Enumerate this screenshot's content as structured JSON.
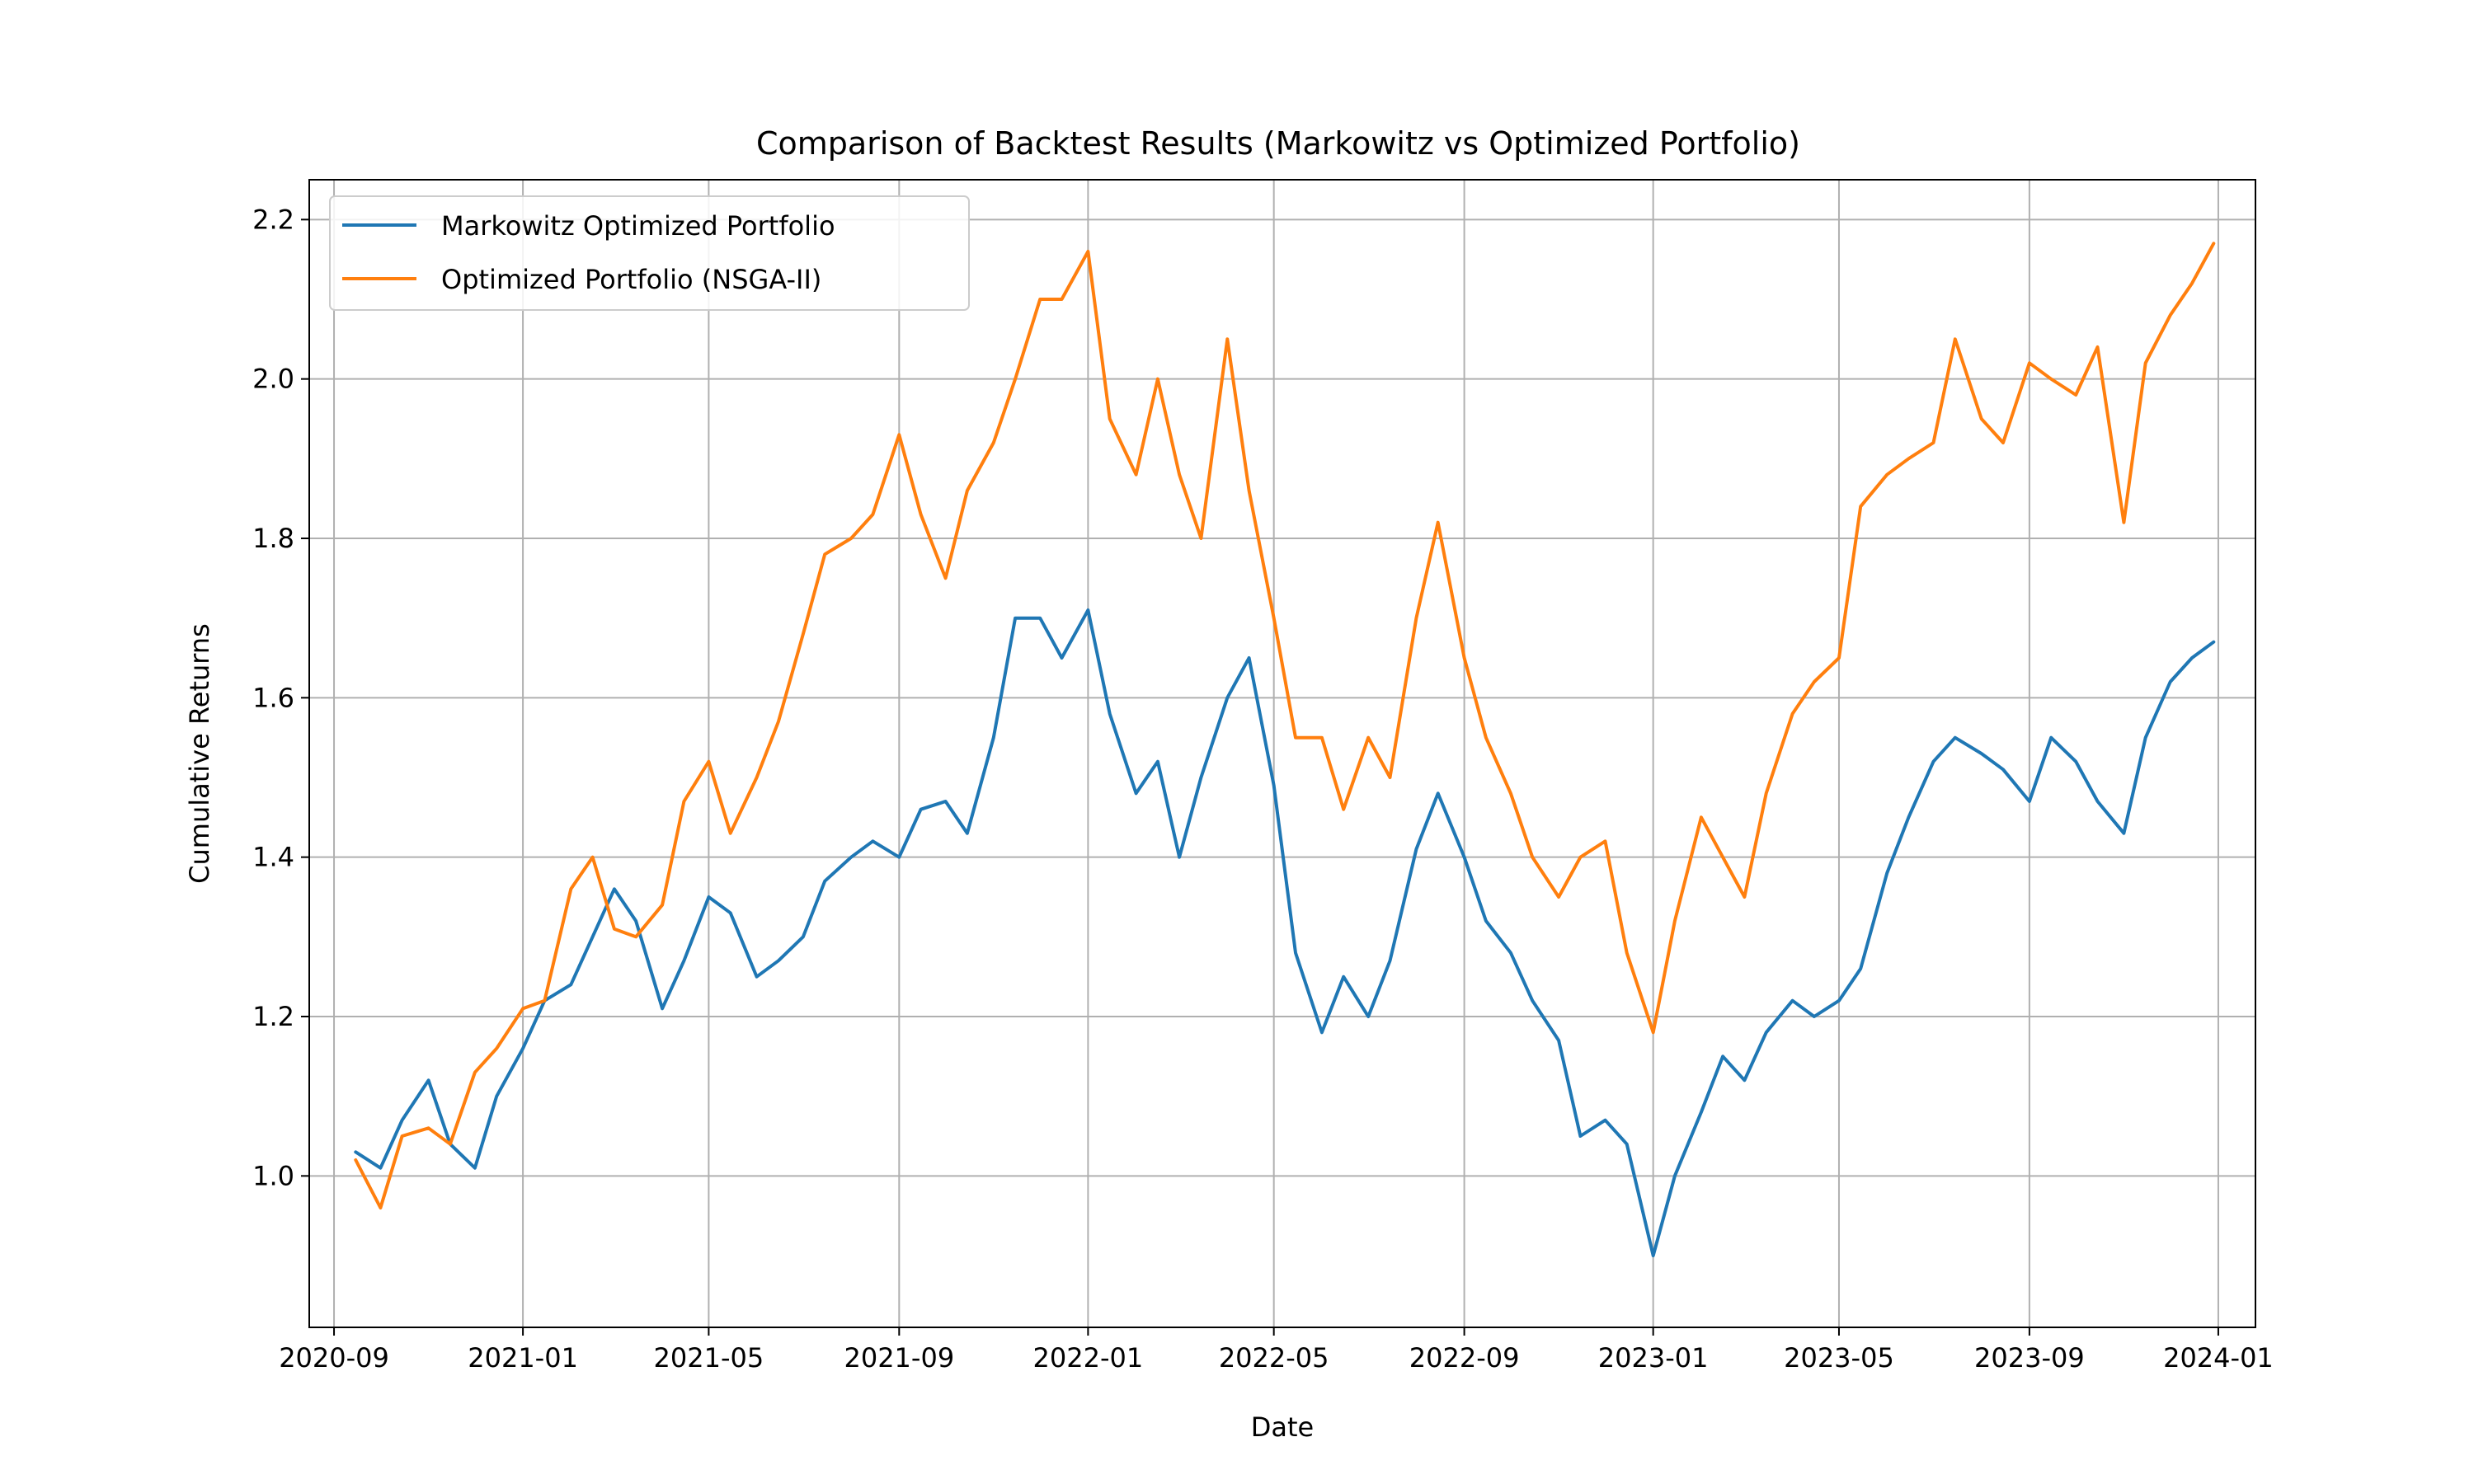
{
  "chart_data": {
    "type": "line",
    "title": "Comparison of Backtest Results (Markowitz vs Optimized Portfolio)",
    "xlabel": "Date",
    "ylabel": "Cumulative Returns",
    "x_ticks": [
      "2020-09",
      "2021-01",
      "2021-05",
      "2021-09",
      "2022-01",
      "2022-05",
      "2022-09",
      "2023-01",
      "2023-05",
      "2023-09",
      "2024-01"
    ],
    "y_ticks": [
      "1.0",
      "1.2",
      "1.4",
      "1.6",
      "1.8",
      "2.0",
      "2.2"
    ],
    "xlim": [
      "2020-08-16",
      "2024-01-25"
    ],
    "ylim": [
      0.81,
      2.25
    ],
    "grid": true,
    "legend_position": "upper-left",
    "x": [
      "2020-09-15",
      "2020-10-01",
      "2020-10-15",
      "2020-11-01",
      "2020-11-15",
      "2020-12-01",
      "2020-12-15",
      "2021-01-01",
      "2021-01-15",
      "2021-02-01",
      "2021-02-15",
      "2021-03-01",
      "2021-03-15",
      "2021-04-01",
      "2021-04-15",
      "2021-05-01",
      "2021-05-15",
      "2021-06-01",
      "2021-06-15",
      "2021-07-01",
      "2021-07-15",
      "2021-08-01",
      "2021-08-15",
      "2021-09-01",
      "2021-09-15",
      "2021-10-01",
      "2021-10-15",
      "2021-11-01",
      "2021-11-15",
      "2021-12-01",
      "2021-12-15",
      "2022-01-01",
      "2022-01-15",
      "2022-02-01",
      "2022-02-15",
      "2022-03-01",
      "2022-03-15",
      "2022-04-01",
      "2022-04-15",
      "2022-05-01",
      "2022-05-15",
      "2022-06-01",
      "2022-06-15",
      "2022-07-01",
      "2022-07-15",
      "2022-08-01",
      "2022-08-15",
      "2022-09-01",
      "2022-09-15",
      "2022-10-01",
      "2022-10-15",
      "2022-11-01",
      "2022-11-15",
      "2022-12-01",
      "2022-12-15",
      "2023-01-01",
      "2023-01-15",
      "2023-02-01",
      "2023-02-15",
      "2023-03-01",
      "2023-03-15",
      "2023-04-01",
      "2023-04-15",
      "2023-05-01",
      "2023-05-15",
      "2023-06-01",
      "2023-06-15",
      "2023-07-01",
      "2023-07-15",
      "2023-08-01",
      "2023-08-15",
      "2023-09-01",
      "2023-09-15",
      "2023-10-01",
      "2023-10-15",
      "2023-11-01",
      "2023-11-15",
      "2023-12-01",
      "2023-12-15",
      "2023-12-29"
    ],
    "series": [
      {
        "name": "Markowitz Optimized Portfolio",
        "color": "#1f77b4",
        "values": [
          1.03,
          1.01,
          1.07,
          1.12,
          1.04,
          1.01,
          1.1,
          1.16,
          1.22,
          1.24,
          1.3,
          1.36,
          1.32,
          1.21,
          1.27,
          1.35,
          1.33,
          1.25,
          1.27,
          1.3,
          1.37,
          1.4,
          1.42,
          1.4,
          1.46,
          1.47,
          1.43,
          1.55,
          1.7,
          1.7,
          1.65,
          1.71,
          1.58,
          1.48,
          1.52,
          1.4,
          1.5,
          1.6,
          1.65,
          1.49,
          1.28,
          1.18,
          1.25,
          1.2,
          1.27,
          1.41,
          1.48,
          1.4,
          1.32,
          1.28,
          1.22,
          1.17,
          1.05,
          1.07,
          1.04,
          0.9,
          1.0,
          1.08,
          1.15,
          1.12,
          1.18,
          1.22,
          1.2,
          1.22,
          1.26,
          1.38,
          1.45,
          1.52,
          1.55,
          1.53,
          1.51,
          1.47,
          1.55,
          1.52,
          1.47,
          1.43,
          1.55,
          1.62,
          1.65,
          1.67
        ]
      },
      {
        "name": "Optimized Portfolio (NSGA-II)",
        "color": "#ff7f0e",
        "values": [
          1.02,
          0.96,
          1.05,
          1.06,
          1.04,
          1.13,
          1.16,
          1.21,
          1.22,
          1.36,
          1.4,
          1.31,
          1.3,
          1.34,
          1.47,
          1.52,
          1.43,
          1.5,
          1.57,
          1.68,
          1.78,
          1.8,
          1.83,
          1.93,
          1.83,
          1.75,
          1.86,
          1.92,
          2.0,
          2.1,
          2.1,
          2.16,
          1.95,
          1.88,
          2.0,
          1.88,
          1.8,
          2.05,
          1.86,
          1.7,
          1.55,
          1.55,
          1.46,
          1.55,
          1.5,
          1.7,
          1.82,
          1.65,
          1.55,
          1.48,
          1.4,
          1.35,
          1.4,
          1.42,
          1.28,
          1.18,
          1.32,
          1.45,
          1.4,
          1.35,
          1.48,
          1.58,
          1.62,
          1.65,
          1.84,
          1.88,
          1.9,
          1.92,
          2.05,
          1.95,
          1.92,
          2.02,
          2.0,
          1.98,
          2.04,
          1.82,
          2.02,
          2.08,
          2.12,
          2.17
        ]
      }
    ]
  }
}
